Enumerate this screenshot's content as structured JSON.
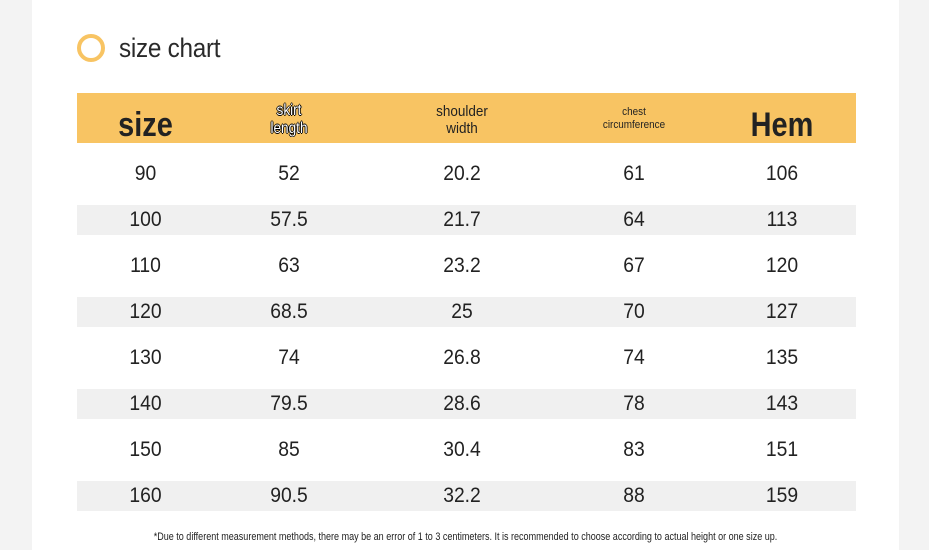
{
  "title": "size chart",
  "header": {
    "size": "size",
    "skirt_length": "skirt\nlength",
    "shoulder_width": "shoulder\nwidth",
    "chest": "chest\ncircumference",
    "hem": "Hem"
  },
  "rows": [
    [
      "90",
      "52",
      "20.2",
      "61",
      "106"
    ],
    [
      "100",
      "57.5",
      "21.7",
      "64",
      "113"
    ],
    [
      "110",
      "63",
      "23.2",
      "67",
      "120"
    ],
    [
      "120",
      "68.5",
      "25",
      "70",
      "127"
    ],
    [
      "130",
      "74",
      "26.8",
      "74",
      "135"
    ],
    [
      "140",
      "79.5",
      "28.6",
      "78",
      "143"
    ],
    [
      "150",
      "85",
      "30.4",
      "83",
      "151"
    ],
    [
      "160",
      "90.5",
      "32.2",
      "88",
      "159"
    ]
  ],
  "footnote": "*Due to different measurement methods, there may be an error of 1 to 3 centimeters. It is recommended to choose according to actual height or one size up.",
  "colors": {
    "accent": "#f8c463",
    "alt_row": "#f0f0f0"
  }
}
